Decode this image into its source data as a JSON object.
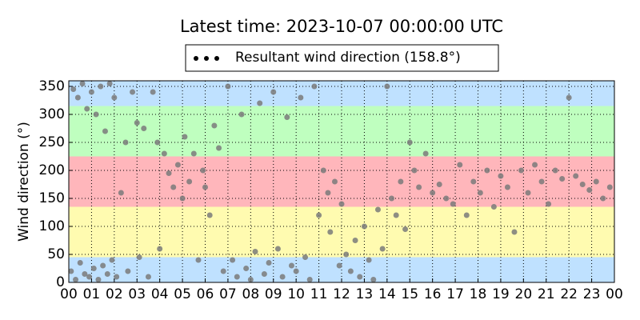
{
  "chart_data": {
    "type": "scatter",
    "title": "Latest time: 2023-10-07 00:00:00 UTC",
    "y_label": "Wind direction (°)",
    "x": [
      0.1,
      0.2,
      0.3,
      0.4,
      0.5,
      0.6,
      0.7,
      0.8,
      0.9,
      1.0,
      1.1,
      1.2,
      1.3,
      1.4,
      1.5,
      1.6,
      1.7,
      1.8,
      1.9,
      2.0,
      2.1,
      2.3,
      2.5,
      2.6,
      2.8,
      3.0,
      3.1,
      3.3,
      3.5,
      3.7,
      3.9,
      4.0,
      4.2,
      4.4,
      4.6,
      4.8,
      5.0,
      5.1,
      5.3,
      5.5,
      5.7,
      5.9,
      6.0,
      6.2,
      6.4,
      6.6,
      6.8,
      7.0,
      7.2,
      7.4,
      7.6,
      7.8,
      8.0,
      8.2,
      8.4,
      8.6,
      8.8,
      9.0,
      9.2,
      9.4,
      9.6,
      9.8,
      10.0,
      10.2,
      10.4,
      10.6,
      10.8,
      11.0,
      11.2,
      11.4,
      11.5,
      11.7,
      11.9,
      12.0,
      12.2,
      12.4,
      12.6,
      12.8,
      13.0,
      13.2,
      13.4,
      13.6,
      13.8,
      14.0,
      14.2,
      14.4,
      14.6,
      14.8,
      15.0,
      15.2,
      15.4,
      15.7,
      16.0,
      16.3,
      16.6,
      16.9,
      17.2,
      17.5,
      17.8,
      18.1,
      18.4,
      18.7,
      19.0,
      19.3,
      19.6,
      19.9,
      20.2,
      20.5,
      20.8,
      21.1,
      21.4,
      21.7,
      22.0,
      22.3,
      22.6,
      22.9,
      23.2,
      23.5,
      23.8
    ],
    "series": [
      {
        "name": "Resultant wind direction (158.8°)",
        "color": "#7a7a7a",
        "values": [
          20,
          345,
          5,
          330,
          35,
          355,
          15,
          310,
          10,
          340,
          25,
          300,
          5,
          350,
          30,
          270,
          15,
          355,
          40,
          330,
          10,
          160,
          250,
          20,
          340,
          285,
          45,
          275,
          10,
          340,
          250,
          60,
          230,
          195,
          170,
          210,
          150,
          260,
          180,
          230,
          40,
          200,
          170,
          120,
          280,
          240,
          20,
          350,
          40,
          10,
          300,
          25,
          5,
          55,
          320,
          15,
          35,
          340,
          60,
          10,
          295,
          30,
          20,
          330,
          45,
          5,
          350,
          120,
          200,
          160,
          90,
          180,
          30,
          140,
          50,
          20,
          75,
          10,
          100,
          40,
          5,
          130,
          60,
          350,
          150,
          120,
          180,
          95,
          250,
          200,
          170,
          230,
          160,
          175,
          150,
          140,
          210,
          120,
          180,
          160,
          200,
          135,
          190,
          170,
          90,
          200,
          160,
          210,
          180,
          140,
          200,
          185,
          330,
          190,
          175,
          165,
          180,
          150,
          170
        ]
      }
    ],
    "bands": [
      {
        "from": 0,
        "to": 45,
        "color": "#bfe1ff"
      },
      {
        "from": 45,
        "to": 135,
        "color": "#fffbb0"
      },
      {
        "from": 135,
        "to": 225,
        "color": "#ffb6bb"
      },
      {
        "from": 225,
        "to": 315,
        "color": "#bfffbf"
      },
      {
        "from": 315,
        "to": 360,
        "color": "#bfe1ff"
      }
    ],
    "xlim": [
      0,
      24
    ],
    "ylim": [
      0,
      360
    ],
    "xticks": [
      {
        "value": 0,
        "label": "00"
      },
      {
        "value": 1,
        "label": "01"
      },
      {
        "value": 2,
        "label": "02"
      },
      {
        "value": 3,
        "label": "03"
      },
      {
        "value": 4,
        "label": "04"
      },
      {
        "value": 5,
        "label": "05"
      },
      {
        "value": 6,
        "label": "06"
      },
      {
        "value": 7,
        "label": "07"
      },
      {
        "value": 8,
        "label": "08"
      },
      {
        "value": 9,
        "label": "09"
      },
      10,
      11,
      12,
      13,
      14,
      15,
      16,
      17,
      18,
      19,
      20,
      21,
      22,
      23,
      {
        "value": 24,
        "label": "00"
      }
    ],
    "yticks": [
      0,
      50,
      100,
      150,
      200,
      250,
      300,
      350
    ],
    "grid": true
  }
}
